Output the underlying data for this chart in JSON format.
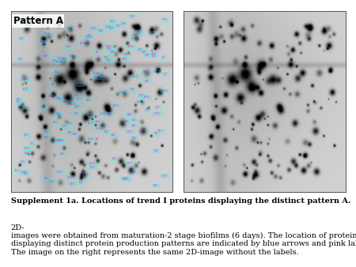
{
  "caption_bold": "Supplement 1a. Locations of trend I proteins displaying the distinct pattern A.",
  "caption_normal": "  2D-\nimages were obtained from maturation-2 stage biofilms (6 days). The location of proteins\ndisplaying distinct protein production patterns are indicated by blue arrows and pink labels.\nThe image on the right represents the same 2D-image without the labels.",
  "panel_label": "Pattern A",
  "background_color": "#ffffff",
  "font_size_caption": 7.0,
  "panel_label_fontsize": 8.5
}
